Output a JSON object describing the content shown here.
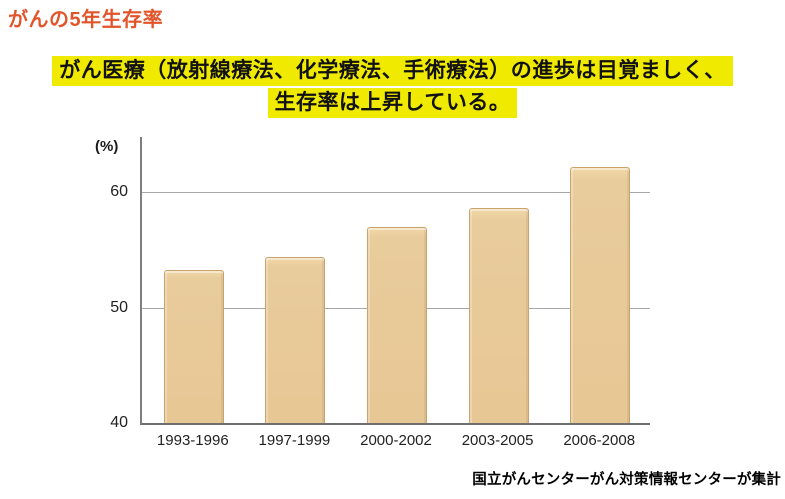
{
  "page": {
    "title": "がんの5年生存率"
  },
  "headline": {
    "line1": "がん医療（放射線療法、化学療法、手術療法）の進歩は目覚ましく、",
    "line2": "生存率は上昇している。",
    "highlight_color": "#f0ea00"
  },
  "chart_data": {
    "type": "bar",
    "title": "",
    "unit_label": "(%)",
    "categories": [
      "1993-1996",
      "1997-1999",
      "2000-2002",
      "2003-2005",
      "2006-2008"
    ],
    "values": [
      53.2,
      54.3,
      56.9,
      58.6,
      62.1
    ],
    "xlabel": "",
    "ylabel": "(%)",
    "ylim": [
      40,
      64.8
    ],
    "yticks": [
      40,
      50,
      60
    ],
    "gridlines": [
      50,
      60
    ],
    "grid": true,
    "legend": false,
    "bar_color": "#e7c794",
    "bar_border_color": "#c9a26c",
    "axis_color": "#7f7f7f",
    "gridline_color": "#a8a8a8"
  },
  "source_note": "国立がんセンターがん対策情報センターが集計"
}
